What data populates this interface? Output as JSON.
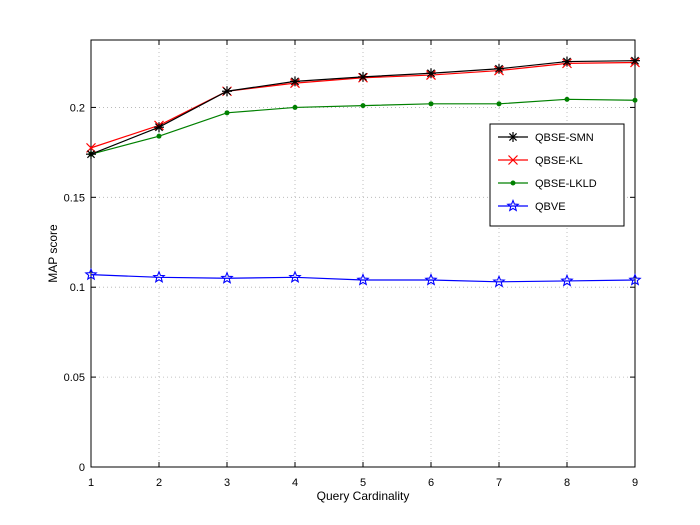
{
  "chart_data": {
    "type": "line",
    "xlabel": "Query Cardinality",
    "ylabel": "MAP score",
    "x": [
      1,
      2,
      3,
      4,
      5,
      6,
      7,
      8,
      9
    ],
    "xlim": [
      1,
      9
    ],
    "ylim": [
      0,
      0.2375
    ],
    "xticks": [
      "1",
      "2",
      "3",
      "4",
      "5",
      "6",
      "7",
      "8",
      "9"
    ],
    "yticks": [
      {
        "value": 0,
        "label": "0"
      },
      {
        "value": 0.05,
        "label": "0.05"
      },
      {
        "value": 0.1,
        "label": "0.1"
      },
      {
        "value": 0.15,
        "label": "0.15"
      },
      {
        "value": 0.2,
        "label": "0.2"
      }
    ],
    "grid": true,
    "legend_position": "right",
    "series": [
      {
        "name": "QBSE-SMN",
        "color": "#000000",
        "marker": "asterisk",
        "values": [
          0.174,
          0.189,
          0.209,
          0.2145,
          0.217,
          0.219,
          0.2215,
          0.2255,
          0.226
        ]
      },
      {
        "name": "QBSE-KL",
        "color": "#ff0000",
        "marker": "x",
        "values": [
          0.1775,
          0.19,
          0.209,
          0.2135,
          0.2165,
          0.218,
          0.2205,
          0.2245,
          0.225
        ]
      },
      {
        "name": "QBSE-LKLD",
        "color": "#008000",
        "marker": "dot",
        "values": [
          0.174,
          0.184,
          0.197,
          0.2,
          0.201,
          0.202,
          0.202,
          0.2045,
          0.204
        ]
      },
      {
        "name": "QBVE",
        "color": "#0000ff",
        "marker": "star",
        "values": [
          0.107,
          0.1055,
          0.105,
          0.1055,
          0.104,
          0.104,
          0.103,
          0.1035,
          0.104
        ]
      }
    ]
  }
}
